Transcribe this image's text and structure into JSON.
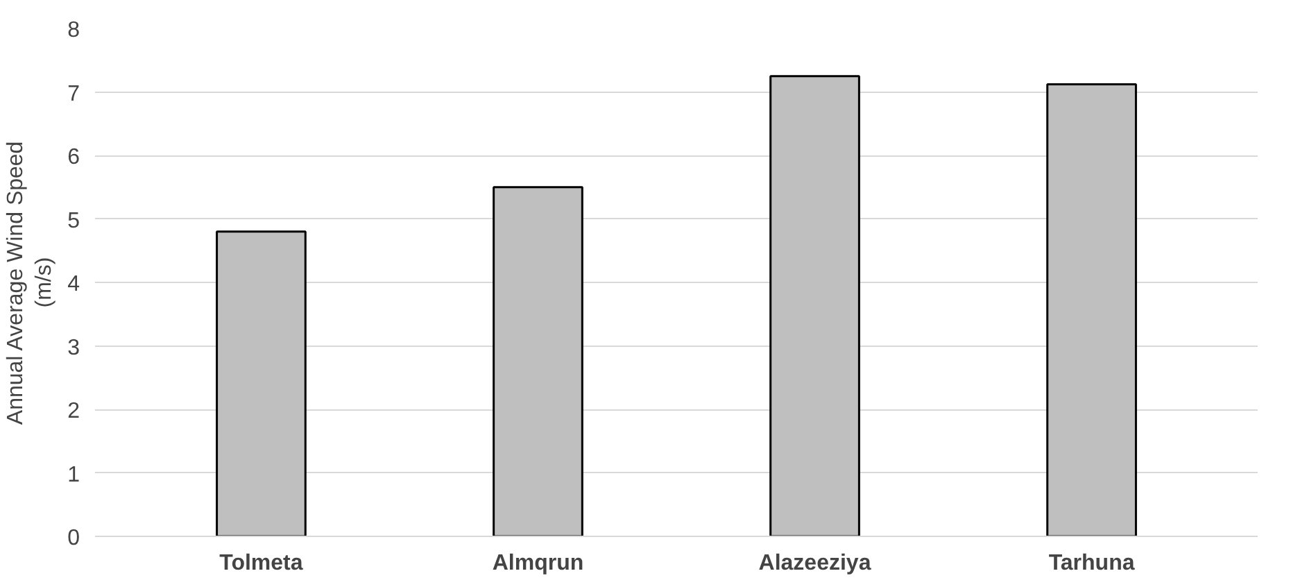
{
  "chart_data": {
    "type": "bar",
    "ylabel": "Annual Average Wind Speed\n(m/s)",
    "categories": [
      "Tolmeta",
      "Almqrun",
      "Alazeeziya",
      "Tarhuna"
    ],
    "values": [
      4.8,
      5.5,
      7.25,
      7.12
    ],
    "color": "#bfbfbf",
    "ylim": [
      0,
      8
    ],
    "yticks": [
      0,
      1,
      2,
      3,
      4,
      5,
      6,
      7,
      8
    ],
    "grid": "y"
  }
}
